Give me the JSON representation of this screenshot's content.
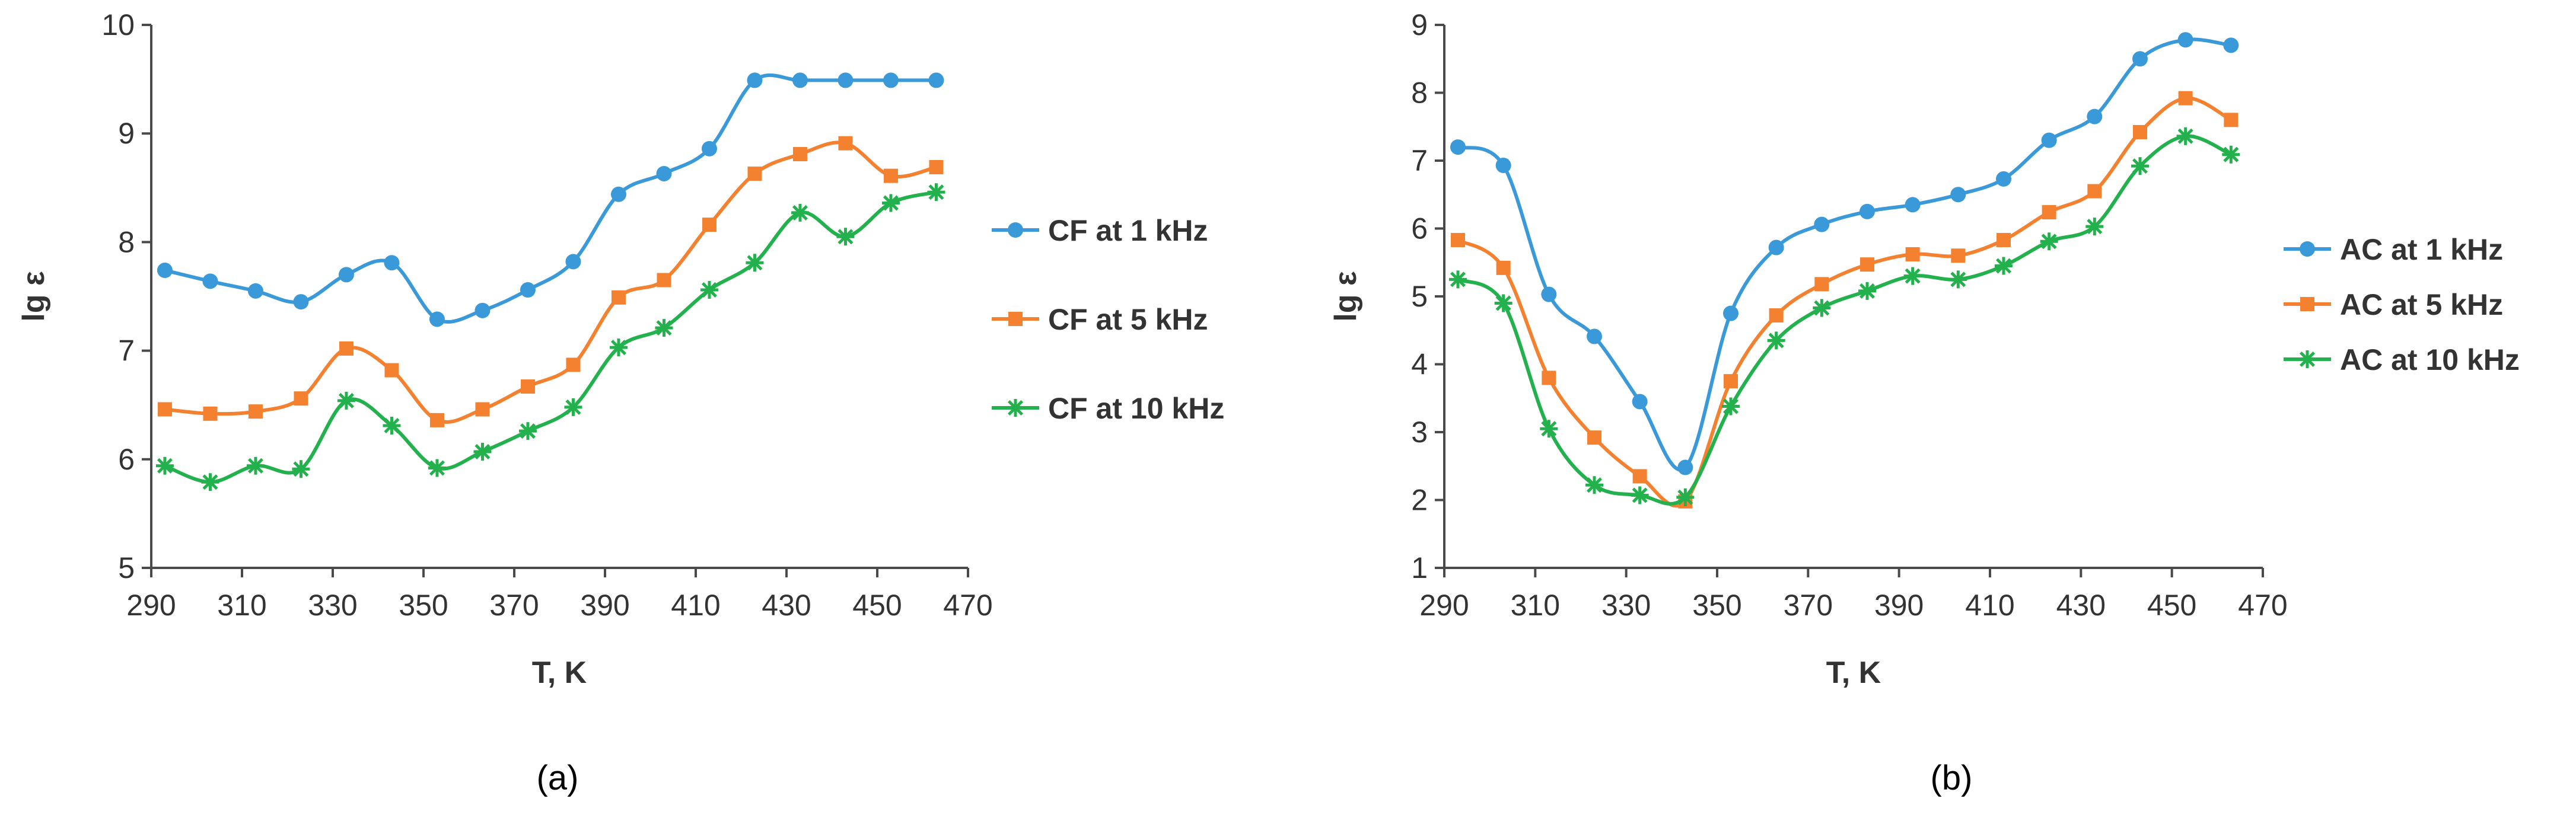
{
  "chart_data": [
    {
      "type": "line",
      "caption": "(a)",
      "xlabel": "T, K",
      "ylabel": "lg ε",
      "xlim": [
        290,
        470
      ],
      "ylim": [
        5,
        10
      ],
      "xticks": [
        290,
        310,
        330,
        350,
        370,
        390,
        410,
        430,
        450,
        470
      ],
      "yticks": [
        5,
        6,
        7,
        8,
        9,
        10
      ],
      "x": [
        293,
        303,
        313,
        323,
        333,
        343,
        353,
        363,
        373,
        383,
        393,
        403,
        413,
        423,
        433,
        443,
        453,
        463
      ],
      "series": [
        {
          "name": "CF at 1 kHz",
          "color": "#3a9ad9",
          "marker": "circle",
          "values": [
            7.74,
            7.64,
            7.55,
            7.45,
            7.7,
            7.81,
            7.29,
            7.37,
            7.56,
            7.82,
            8.44,
            8.63,
            8.86,
            9.49,
            9.49,
            9.49,
            9.49,
            9.49
          ]
        },
        {
          "name": "CF at 5 kHz",
          "color": "#f4812f",
          "marker": "square",
          "values": [
            6.46,
            6.42,
            6.44,
            6.56,
            7.02,
            6.82,
            6.36,
            6.46,
            6.67,
            6.87,
            7.49,
            7.65,
            8.16,
            8.63,
            8.81,
            8.91,
            8.61,
            8.69
          ]
        },
        {
          "name": "CF at 10 kHz",
          "color": "#22b14c",
          "marker": "star",
          "values": [
            5.94,
            5.79,
            5.94,
            5.91,
            6.54,
            6.31,
            5.92,
            6.07,
            6.26,
            6.48,
            7.03,
            7.21,
            7.56,
            7.81,
            8.27,
            8.05,
            8.36,
            8.46
          ]
        }
      ]
    },
    {
      "type": "line",
      "caption": "(b)",
      "xlabel": "T, K",
      "ylabel": "lg ε",
      "xlim": [
        290,
        470
      ],
      "ylim": [
        1,
        9
      ],
      "xticks": [
        290,
        310,
        330,
        350,
        370,
        390,
        410,
        430,
        450,
        470
      ],
      "yticks": [
        1,
        2,
        3,
        4,
        5,
        6,
        7,
        8,
        9
      ],
      "x": [
        293,
        303,
        313,
        323,
        333,
        343,
        353,
        363,
        373,
        383,
        393,
        403,
        413,
        423,
        433,
        443,
        453,
        463
      ],
      "series": [
        {
          "name": "AC at 1 kHz",
          "color": "#3a9ad9",
          "marker": "circle",
          "values": [
            7.2,
            6.93,
            5.03,
            4.41,
            3.45,
            2.48,
            4.75,
            5.72,
            6.06,
            6.25,
            6.35,
            6.5,
            6.73,
            7.3,
            7.65,
            8.5,
            8.78,
            8.7
          ]
        },
        {
          "name": "AC at 5 kHz",
          "color": "#f4812f",
          "marker": "square",
          "values": [
            5.83,
            5.42,
            3.8,
            2.92,
            2.35,
            1.98,
            3.75,
            4.72,
            5.18,
            5.47,
            5.62,
            5.6,
            5.83,
            6.24,
            6.55,
            7.42,
            7.92,
            7.6
          ]
        },
        {
          "name": "AC at 10 kHz",
          "color": "#22b14c",
          "marker": "star",
          "values": [
            5.25,
            4.9,
            3.05,
            2.22,
            2.07,
            2.04,
            3.38,
            4.35,
            4.83,
            5.08,
            5.3,
            5.25,
            5.45,
            5.81,
            6.03,
            6.92,
            7.36,
            7.09
          ]
        }
      ]
    }
  ]
}
